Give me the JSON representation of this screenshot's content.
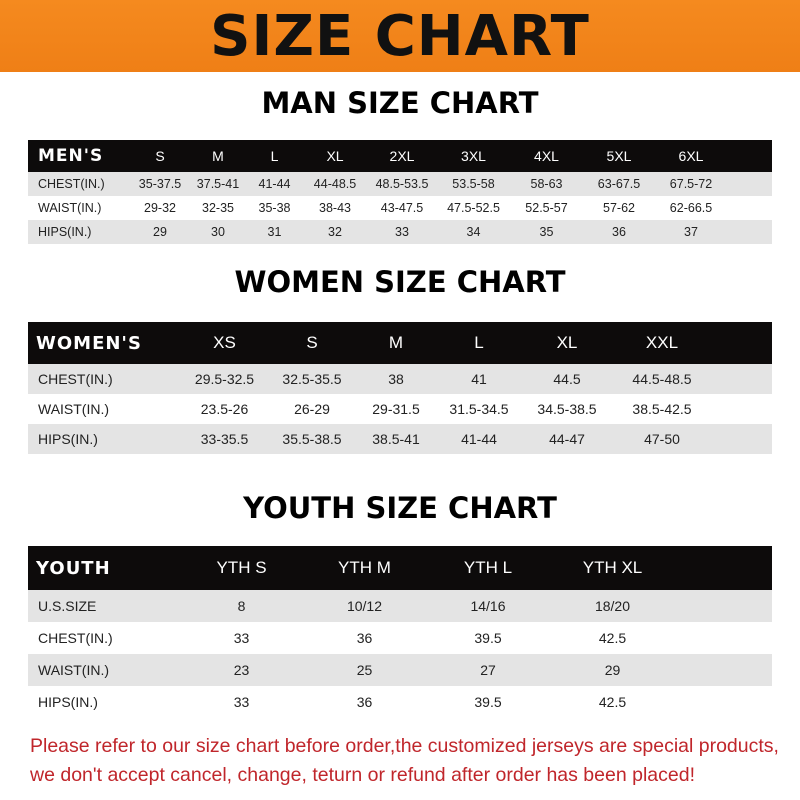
{
  "banner": {
    "title": "SIZE CHART",
    "color": "#f58a1f"
  },
  "men": {
    "title": "MAN SIZE CHART",
    "header": [
      "MEN'S",
      "S",
      "M",
      "L",
      "XL",
      "2XL",
      "3XL",
      "4XL",
      "5XL",
      "6XL"
    ],
    "rows": [
      [
        "CHEST(IN.)",
        "35-37.5",
        "37.5-41",
        "41-44",
        "44-48.5",
        "48.5-53.5",
        "53.5-58",
        "58-63",
        "63-67.5",
        "67.5-72"
      ],
      [
        "WAIST(IN.)",
        "29-32",
        "32-35",
        "35-38",
        "38-43",
        "43-47.5",
        "47.5-52.5",
        "52.5-57",
        "57-62",
        "62-66.5"
      ],
      [
        "HIPS(IN.)",
        "29",
        "30",
        "31",
        "32",
        "33",
        "34",
        "35",
        "36",
        "37"
      ]
    ]
  },
  "women": {
    "title": "WOMEN SIZE CHART",
    "header": [
      "WOMEN'S",
      "XS",
      "S",
      "M",
      "L",
      "XL",
      "XXL"
    ],
    "rows": [
      [
        "CHEST(IN.)",
        "29.5-32.5",
        "32.5-35.5",
        "38",
        "41",
        "44.5",
        "44.5-48.5"
      ],
      [
        "WAIST(IN.)",
        "23.5-26",
        "26-29",
        "29-31.5",
        "31.5-34.5",
        "34.5-38.5",
        "38.5-42.5"
      ],
      [
        "HIPS(IN.)",
        "33-35.5",
        "35.5-38.5",
        "38.5-41",
        "41-44",
        "44-47",
        "47-50"
      ]
    ]
  },
  "youth": {
    "title": "YOUTH SIZE CHART",
    "header": [
      "YOUTH",
      "YTH S",
      "YTH M",
      "YTH L",
      "YTH XL"
    ],
    "rows": [
      [
        "U.S.SIZE",
        "8",
        "10/12",
        "14/16",
        "18/20"
      ],
      [
        "CHEST(IN.)",
        "33",
        "36",
        "39.5",
        "42.5"
      ],
      [
        "WAIST(IN.)",
        "23",
        "25",
        "27",
        "29"
      ],
      [
        "HIPS(IN.)",
        "33",
        "36",
        "39.5",
        "42.5"
      ]
    ]
  },
  "notice": {
    "line1": "Please refer to our size chart before order,the customized jerseys are special products,",
    "line2": "we don't accept cancel, change, teturn or refund after order has been placed!",
    "color": "#c0262b"
  }
}
